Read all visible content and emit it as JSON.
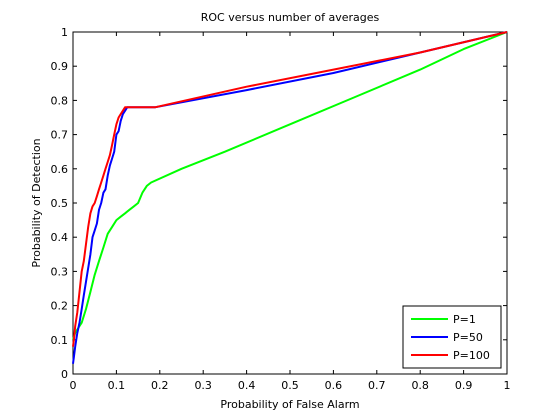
{
  "chart_data": {
    "type": "line",
    "title": "ROC versus number of averages",
    "xlabel": "Probability of False Alarm",
    "ylabel": "Probability of Detection",
    "xlim": [
      0,
      1
    ],
    "ylim": [
      0,
      1
    ],
    "xticks": [
      "0",
      "0.1",
      "0.2",
      "0.3",
      "0.4",
      "0.5",
      "0.6",
      "0.7",
      "0.8",
      "0.9",
      "1"
    ],
    "yticks": [
      "0",
      "0.1",
      "0.2",
      "0.3",
      "0.4",
      "0.5",
      "0.6",
      "0.7",
      "0.8",
      "0.9",
      "1"
    ],
    "grid": false,
    "legend_position": "bottom-right",
    "series": [
      {
        "name": "P=1",
        "color": "#00ff00",
        "x": [
          0,
          0.005,
          0.01,
          0.02,
          0.03,
          0.04,
          0.05,
          0.06,
          0.07,
          0.08,
          0.09,
          0.1,
          0.11,
          0.12,
          0.13,
          0.14,
          0.15,
          0.16,
          0.17,
          0.18,
          0.25,
          0.35,
          0.5,
          0.65,
          0.8,
          0.9,
          1.0
        ],
        "y": [
          0.1,
          0.12,
          0.13,
          0.15,
          0.19,
          0.24,
          0.29,
          0.33,
          0.37,
          0.41,
          0.43,
          0.45,
          0.46,
          0.47,
          0.48,
          0.49,
          0.5,
          0.53,
          0.55,
          0.56,
          0.6,
          0.65,
          0.73,
          0.81,
          0.89,
          0.95,
          1.0
        ]
      },
      {
        "name": "P=50",
        "color": "#0000ff",
        "x": [
          0,
          0.002,
          0.005,
          0.01,
          0.015,
          0.02,
          0.025,
          0.03,
          0.035,
          0.04,
          0.045,
          0.05,
          0.055,
          0.06,
          0.065,
          0.07,
          0.075,
          0.08,
          0.085,
          0.09,
          0.095,
          0.1,
          0.105,
          0.11,
          0.115,
          0.12,
          0.125,
          0.13,
          0.19,
          0.4,
          0.6,
          0.8,
          1.0
        ],
        "y": [
          0.03,
          0.05,
          0.08,
          0.12,
          0.15,
          0.19,
          0.23,
          0.27,
          0.31,
          0.35,
          0.4,
          0.42,
          0.44,
          0.48,
          0.5,
          0.53,
          0.54,
          0.58,
          0.61,
          0.63,
          0.65,
          0.7,
          0.71,
          0.74,
          0.76,
          0.77,
          0.78,
          0.78,
          0.78,
          0.83,
          0.88,
          0.94,
          1.0
        ]
      },
      {
        "name": "P=100",
        "color": "#ff0000",
        "x": [
          0,
          0.002,
          0.005,
          0.01,
          0.015,
          0.02,
          0.025,
          0.03,
          0.035,
          0.04,
          0.045,
          0.05,
          0.055,
          0.06,
          0.065,
          0.07,
          0.075,
          0.08,
          0.085,
          0.09,
          0.095,
          0.1,
          0.105,
          0.11,
          0.115,
          0.12,
          0.13,
          0.14,
          0.19,
          0.4,
          0.6,
          0.8,
          1.0
        ],
        "y": [
          0.08,
          0.1,
          0.14,
          0.18,
          0.24,
          0.3,
          0.33,
          0.38,
          0.43,
          0.47,
          0.49,
          0.5,
          0.52,
          0.54,
          0.56,
          0.58,
          0.6,
          0.62,
          0.64,
          0.67,
          0.7,
          0.73,
          0.75,
          0.76,
          0.77,
          0.78,
          0.78,
          0.78,
          0.78,
          0.84,
          0.89,
          0.94,
          1.0
        ]
      }
    ]
  }
}
